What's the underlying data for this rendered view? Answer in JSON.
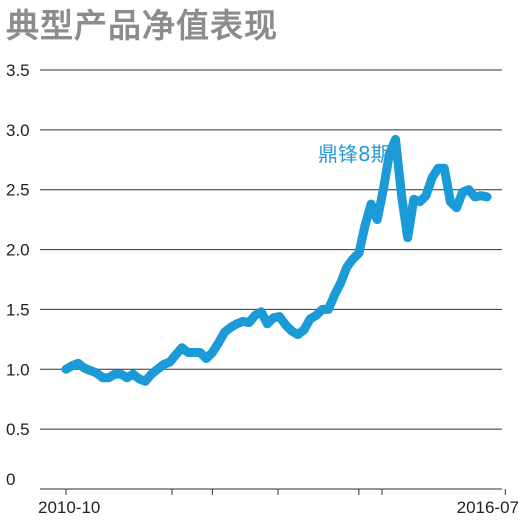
{
  "chart_data": {
    "type": "line",
    "title": "典型产品净值表现",
    "xlabel": "",
    "ylabel": "",
    "x_tick_labels": [
      "2010-10",
      "2016-07"
    ],
    "x_range": [
      "2010-10",
      "2016-07"
    ],
    "ylim": [
      0,
      3.5
    ],
    "y_ticks": [
      0,
      0.5,
      1.0,
      1.5,
      2.0,
      2.5,
      3.0,
      3.5
    ],
    "y_tick_labels": [
      "0",
      "0.5",
      "1.0",
      "1.5",
      "2.0",
      "2.5",
      "3.0",
      "3.5"
    ],
    "grid": "horizontal",
    "series_color": "#1a9ad6",
    "series": [
      {
        "name": "鼎锋8期",
        "points": [
          [
            "2010-10",
            1.0
          ],
          [
            "2010-11",
            1.03
          ],
          [
            "2010-12",
            1.05
          ],
          [
            "2011-01",
            1.01
          ],
          [
            "2011-02",
            0.99
          ],
          [
            "2011-03",
            0.97
          ],
          [
            "2011-04",
            0.93
          ],
          [
            "2011-05",
            0.93
          ],
          [
            "2011-06",
            0.96
          ],
          [
            "2011-07",
            0.96
          ],
          [
            "2011-08",
            0.93
          ],
          [
            "2011-09",
            0.96
          ],
          [
            "2011-10",
            0.92
          ],
          [
            "2011-11",
            0.9
          ],
          [
            "2011-12",
            0.96
          ],
          [
            "2012-01",
            1.0
          ],
          [
            "2012-02",
            1.04
          ],
          [
            "2012-03",
            1.06
          ],
          [
            "2012-04",
            1.12
          ],
          [
            "2012-05",
            1.18
          ],
          [
            "2012-06",
            1.14
          ],
          [
            "2012-07",
            1.14
          ],
          [
            "2012-08",
            1.14
          ],
          [
            "2012-09",
            1.09
          ],
          [
            "2012-10",
            1.14
          ],
          [
            "2012-11",
            1.22
          ],
          [
            "2012-12",
            1.31
          ],
          [
            "2013-01",
            1.35
          ],
          [
            "2013-02",
            1.38
          ],
          [
            "2013-03",
            1.4
          ],
          [
            "2013-04",
            1.39
          ],
          [
            "2013-05",
            1.45
          ],
          [
            "2013-06",
            1.48
          ],
          [
            "2013-07",
            1.38
          ],
          [
            "2013-08",
            1.43
          ],
          [
            "2013-09",
            1.44
          ],
          [
            "2013-10",
            1.37
          ],
          [
            "2013-11",
            1.32
          ],
          [
            "2013-12",
            1.29
          ],
          [
            "2014-01",
            1.33
          ],
          [
            "2014-02",
            1.42
          ],
          [
            "2014-03",
            1.45
          ],
          [
            "2014-04",
            1.5
          ],
          [
            "2014-05",
            1.5
          ],
          [
            "2014-06",
            1.62
          ],
          [
            "2014-07",
            1.72
          ],
          [
            "2014-08",
            1.85
          ],
          [
            "2014-09",
            1.92
          ],
          [
            "2014-10",
            1.97
          ],
          [
            "2014-11",
            2.2
          ],
          [
            "2014-12",
            2.38
          ],
          [
            "2015-01",
            2.25
          ],
          [
            "2015-02",
            2.5
          ],
          [
            "2015-03",
            2.8
          ],
          [
            "2015-04",
            2.92
          ],
          [
            "2015-05",
            2.45
          ],
          [
            "2015-06",
            2.1
          ],
          [
            "2015-07",
            2.42
          ],
          [
            "2015-08",
            2.4
          ],
          [
            "2015-09",
            2.45
          ],
          [
            "2015-10",
            2.6
          ],
          [
            "2015-11",
            2.68
          ],
          [
            "2015-12",
            2.68
          ],
          [
            "2016-01",
            2.4
          ],
          [
            "2016-02",
            2.35
          ],
          [
            "2016-03",
            2.48
          ],
          [
            "2016-04",
            2.5
          ],
          [
            "2016-05",
            2.44
          ],
          [
            "2016-06",
            2.45
          ],
          [
            "2016-07",
            2.44
          ]
        ]
      }
    ]
  }
}
